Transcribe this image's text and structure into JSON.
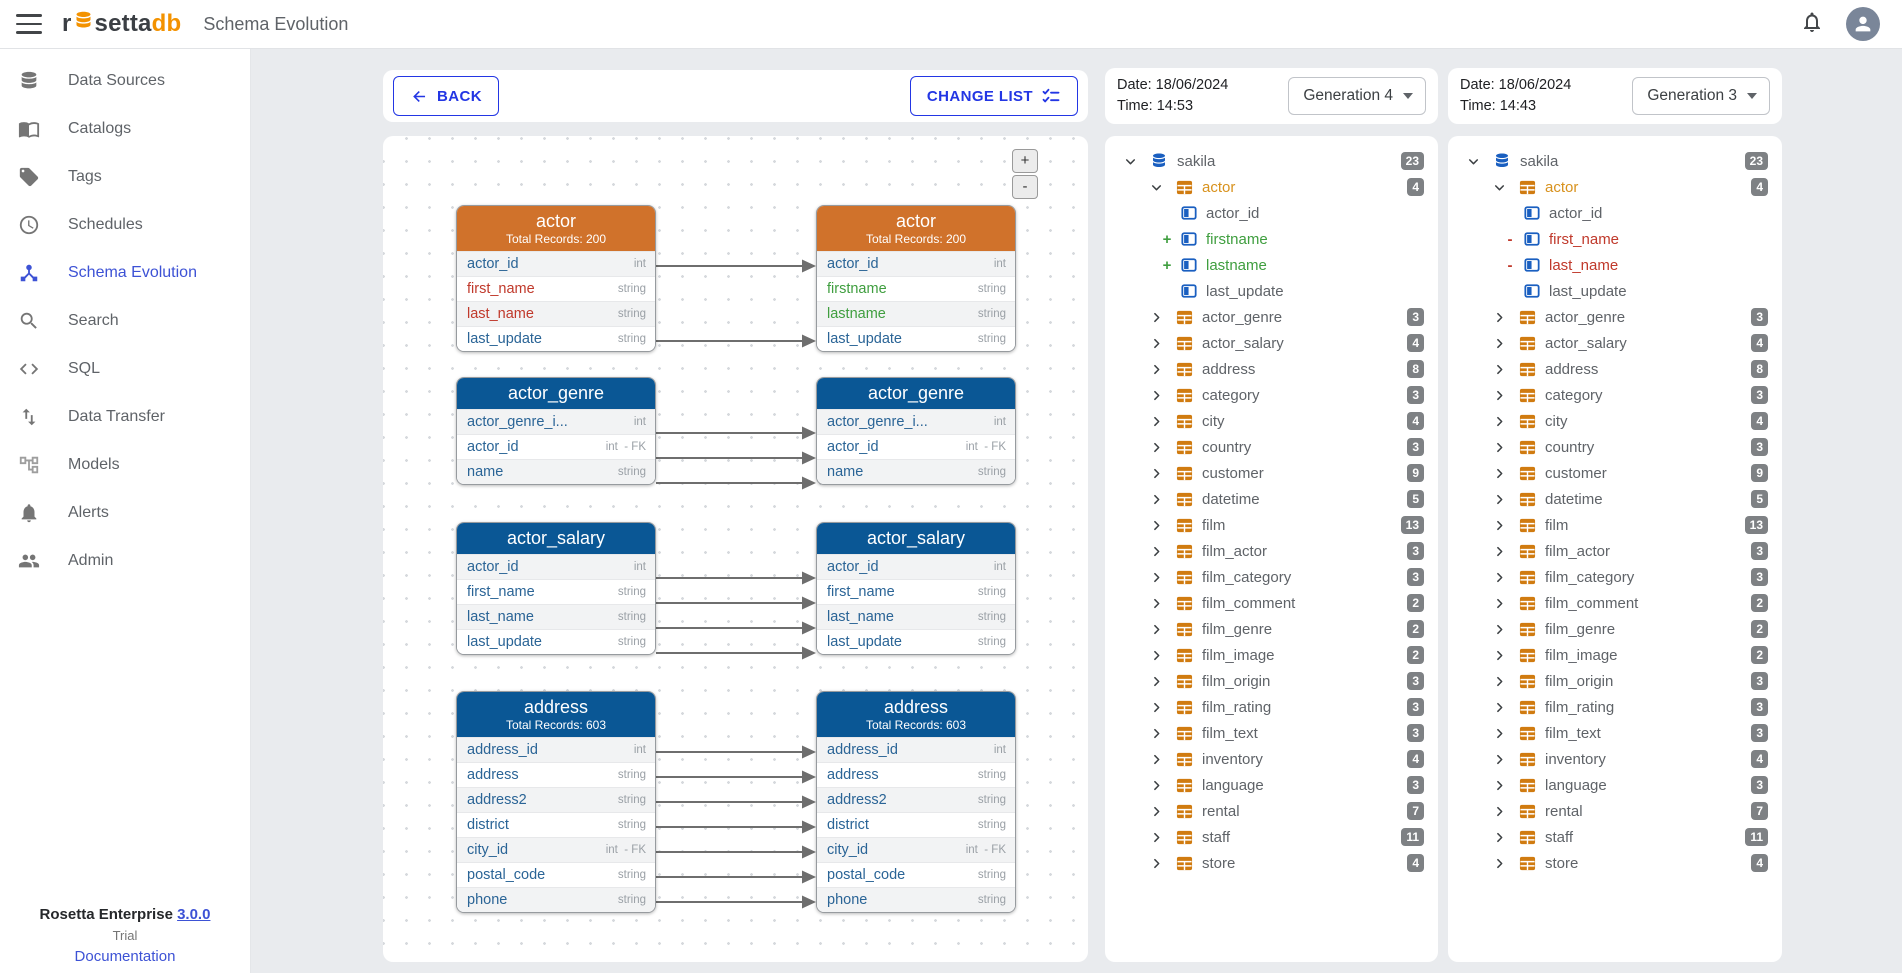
{
  "topbar": {
    "logo": {
      "part1": "r",
      "part2": "setta",
      "part3": "db"
    },
    "title": "Schema Evolution"
  },
  "sidebar": {
    "items": [
      {
        "label": "Data Sources",
        "icon": "database-icon",
        "active": false
      },
      {
        "label": "Catalogs",
        "icon": "book-icon",
        "active": false
      },
      {
        "label": "Tags",
        "icon": "tag-icon",
        "active": false
      },
      {
        "label": "Schedules",
        "icon": "clock-icon",
        "active": false
      },
      {
        "label": "Schema Evolution",
        "icon": "schema-evolution-icon",
        "active": true
      },
      {
        "label": "Search",
        "icon": "search-icon",
        "active": false
      },
      {
        "label": "SQL",
        "icon": "code-icon",
        "active": false
      },
      {
        "label": "Data Transfer",
        "icon": "transfer-icon",
        "active": false
      },
      {
        "label": "Models",
        "icon": "models-icon",
        "active": false
      },
      {
        "label": "Alerts",
        "icon": "bell-icon",
        "active": false
      },
      {
        "label": "Admin",
        "icon": "people-icon",
        "active": false
      }
    ],
    "footer": {
      "product": "Rosetta Enterprise",
      "version": "3.0.0",
      "edition": "Trial",
      "link": "Documentation"
    }
  },
  "toolbar": {
    "back": "BACK",
    "change_list": "CHANGE LIST"
  },
  "canvas": {
    "zoom_in": "+",
    "zoom_out": "-",
    "columns": [
      {
        "side": "left",
        "tables": [
          {
            "name": "actor",
            "variant": "orange",
            "subtitle": "Total Records: 200",
            "links_at": "center",
            "links": [
              0,
              3
            ],
            "rows": [
              {
                "name": "actor_id",
                "type": "int"
              },
              {
                "name": "first_name",
                "type": "string",
                "state": "removed"
              },
              {
                "name": "last_name",
                "type": "string",
                "state": "removed"
              },
              {
                "name": "last_update",
                "type": "string"
              }
            ]
          },
          {
            "name": "actor_genre",
            "variant": "blue",
            "links_at": "bottom",
            "links": [
              0,
              1,
              2
            ],
            "rows": [
              {
                "name": "actor_genre_i...",
                "type": "int"
              },
              {
                "name": "actor_id",
                "type": "int",
                "fk": true
              },
              {
                "name": "name",
                "type": "string"
              }
            ]
          },
          {
            "name": "actor_salary",
            "variant": "blue",
            "links_at": "bottom",
            "links": [
              0,
              1,
              2,
              3
            ],
            "rows": [
              {
                "name": "actor_id",
                "type": "int"
              },
              {
                "name": "first_name",
                "type": "string"
              },
              {
                "name": "last_name",
                "type": "string"
              },
              {
                "name": "last_update",
                "type": "string"
              }
            ]
          },
          {
            "name": "address",
            "variant": "blue",
            "subtitle": "Total Records: 603",
            "links_at": "center",
            "links": [
              0,
              1,
              2,
              3,
              4,
              5,
              6
            ],
            "rows": [
              {
                "name": "address_id",
                "type": "int"
              },
              {
                "name": "address",
                "type": "string"
              },
              {
                "name": "address2",
                "type": "string"
              },
              {
                "name": "district",
                "type": "string"
              },
              {
                "name": "city_id",
                "type": "int",
                "fk": true
              },
              {
                "name": "postal_code",
                "type": "string"
              },
              {
                "name": "phone",
                "type": "string"
              }
            ]
          }
        ]
      },
      {
        "side": "right",
        "tables": [
          {
            "name": "actor",
            "variant": "orange",
            "subtitle": "Total Records: 200",
            "rows": [
              {
                "name": "actor_id",
                "type": "int"
              },
              {
                "name": "firstname",
                "type": "string",
                "state": "added"
              },
              {
                "name": "lastname",
                "type": "string",
                "state": "added"
              },
              {
                "name": "last_update",
                "type": "string"
              }
            ]
          },
          {
            "name": "actor_genre",
            "variant": "blue",
            "rows": [
              {
                "name": "actor_genre_i...",
                "type": "int"
              },
              {
                "name": "actor_id",
                "type": "int",
                "fk": true
              },
              {
                "name": "name",
                "type": "string"
              }
            ]
          },
          {
            "name": "actor_salary",
            "variant": "blue",
            "rows": [
              {
                "name": "actor_id",
                "type": "int"
              },
              {
                "name": "first_name",
                "type": "string"
              },
              {
                "name": "last_name",
                "type": "string"
              },
              {
                "name": "last_update",
                "type": "string"
              }
            ]
          },
          {
            "name": "address",
            "variant": "blue",
            "subtitle": "Total Records: 603",
            "rows": [
              {
                "name": "address_id",
                "type": "int"
              },
              {
                "name": "address",
                "type": "string"
              },
              {
                "name": "address2",
                "type": "string"
              },
              {
                "name": "district",
                "type": "string"
              },
              {
                "name": "city_id",
                "type": "int",
                "fk": true
              },
              {
                "name": "postal_code",
                "type": "string"
              },
              {
                "name": "phone",
                "type": "string"
              }
            ]
          }
        ]
      }
    ]
  },
  "panels": [
    {
      "date_label": "Date: 18/06/2024",
      "time_label": "Time: 14:53",
      "generation": "Generation 4",
      "tree": [
        {
          "label": "sakila",
          "icon": "db",
          "level": 0,
          "chevron": "down",
          "badge": "23"
        },
        {
          "label": "actor",
          "icon": "table",
          "level": 1,
          "chevron": "down",
          "badge": "4",
          "color": "orange"
        },
        {
          "label": "actor_id",
          "icon": "column",
          "level": 2
        },
        {
          "label": "firstname",
          "icon": "column",
          "level": 2,
          "marker": "+",
          "color": "green"
        },
        {
          "label": "lastname",
          "icon": "column",
          "level": 2,
          "marker": "+",
          "color": "green"
        },
        {
          "label": "last_update",
          "icon": "column",
          "level": 2
        },
        {
          "label": "actor_genre",
          "icon": "table",
          "level": 1,
          "chevron": "right",
          "badge": "3"
        },
        {
          "label": "actor_salary",
          "icon": "table",
          "level": 1,
          "chevron": "right",
          "badge": "4"
        },
        {
          "label": "address",
          "icon": "table",
          "level": 1,
          "chevron": "right",
          "badge": "8"
        },
        {
          "label": "category",
          "icon": "table",
          "level": 1,
          "chevron": "right",
          "badge": "3"
        },
        {
          "label": "city",
          "icon": "table",
          "level": 1,
          "chevron": "right",
          "badge": "4"
        },
        {
          "label": "country",
          "icon": "table",
          "level": 1,
          "chevron": "right",
          "badge": "3"
        },
        {
          "label": "customer",
          "icon": "table",
          "level": 1,
          "chevron": "right",
          "badge": "9"
        },
        {
          "label": "datetime",
          "icon": "table",
          "level": 1,
          "chevron": "right",
          "badge": "5"
        },
        {
          "label": "film",
          "icon": "table",
          "level": 1,
          "chevron": "right",
          "badge": "13"
        },
        {
          "label": "film_actor",
          "icon": "table",
          "level": 1,
          "chevron": "right",
          "badge": "3"
        },
        {
          "label": "film_category",
          "icon": "table",
          "level": 1,
          "chevron": "right",
          "badge": "3"
        },
        {
          "label": "film_comment",
          "icon": "table",
          "level": 1,
          "chevron": "right",
          "badge": "2"
        },
        {
          "label": "film_genre",
          "icon": "table",
          "level": 1,
          "chevron": "right",
          "badge": "2"
        },
        {
          "label": "film_image",
          "icon": "table",
          "level": 1,
          "chevron": "right",
          "badge": "2"
        },
        {
          "label": "film_origin",
          "icon": "table",
          "level": 1,
          "chevron": "right",
          "badge": "3"
        },
        {
          "label": "film_rating",
          "icon": "table",
          "level": 1,
          "chevron": "right",
          "badge": "3"
        },
        {
          "label": "film_text",
          "icon": "table",
          "level": 1,
          "chevron": "right",
          "badge": "3"
        },
        {
          "label": "inventory",
          "icon": "table",
          "level": 1,
          "chevron": "right",
          "badge": "4"
        },
        {
          "label": "language",
          "icon": "table",
          "level": 1,
          "chevron": "right",
          "badge": "3"
        },
        {
          "label": "rental",
          "icon": "table",
          "level": 1,
          "chevron": "right",
          "badge": "7"
        },
        {
          "label": "staff",
          "icon": "table",
          "level": 1,
          "chevron": "right",
          "badge": "11"
        },
        {
          "label": "store",
          "icon": "table",
          "level": 1,
          "chevron": "right",
          "badge": "4"
        }
      ]
    },
    {
      "date_label": "Date: 18/06/2024",
      "time_label": "Time: 14:43",
      "generation": "Generation 3",
      "tree": [
        {
          "label": "sakila",
          "icon": "db",
          "level": 0,
          "chevron": "down",
          "badge": "23"
        },
        {
          "label": "actor",
          "icon": "table",
          "level": 1,
          "chevron": "down",
          "badge": "4",
          "color": "orange"
        },
        {
          "label": "actor_id",
          "icon": "column",
          "level": 2
        },
        {
          "label": "first_name",
          "icon": "column",
          "level": 2,
          "marker": "-",
          "color": "red"
        },
        {
          "label": "last_name",
          "icon": "column",
          "level": 2,
          "marker": "-",
          "color": "red"
        },
        {
          "label": "last_update",
          "icon": "column",
          "level": 2
        },
        {
          "label": "actor_genre",
          "icon": "table",
          "level": 1,
          "chevron": "right",
          "badge": "3"
        },
        {
          "label": "actor_salary",
          "icon": "table",
          "level": 1,
          "chevron": "right",
          "badge": "4"
        },
        {
          "label": "address",
          "icon": "table",
          "level": 1,
          "chevron": "right",
          "badge": "8"
        },
        {
          "label": "category",
          "icon": "table",
          "level": 1,
          "chevron": "right",
          "badge": "3"
        },
        {
          "label": "city",
          "icon": "table",
          "level": 1,
          "chevron": "right",
          "badge": "4"
        },
        {
          "label": "country",
          "icon": "table",
          "level": 1,
          "chevron": "right",
          "badge": "3"
        },
        {
          "label": "customer",
          "icon": "table",
          "level": 1,
          "chevron": "right",
          "badge": "9"
        },
        {
          "label": "datetime",
          "icon": "table",
          "level": 1,
          "chevron": "right",
          "badge": "5"
        },
        {
          "label": "film",
          "icon": "table",
          "level": 1,
          "chevron": "right",
          "badge": "13"
        },
        {
          "label": "film_actor",
          "icon": "table",
          "level": 1,
          "chevron": "right",
          "badge": "3"
        },
        {
          "label": "film_category",
          "icon": "table",
          "level": 1,
          "chevron": "right",
          "badge": "3"
        },
        {
          "label": "film_comment",
          "icon": "table",
          "level": 1,
          "chevron": "right",
          "badge": "2"
        },
        {
          "label": "film_genre",
          "icon": "table",
          "level": 1,
          "chevron": "right",
          "badge": "2"
        },
        {
          "label": "film_image",
          "icon": "table",
          "level": 1,
          "chevron": "right",
          "badge": "2"
        },
        {
          "label": "film_origin",
          "icon": "table",
          "level": 1,
          "chevron": "right",
          "badge": "3"
        },
        {
          "label": "film_rating",
          "icon": "table",
          "level": 1,
          "chevron": "right",
          "badge": "3"
        },
        {
          "label": "film_text",
          "icon": "table",
          "level": 1,
          "chevron": "right",
          "badge": "3"
        },
        {
          "label": "inventory",
          "icon": "table",
          "level": 1,
          "chevron": "right",
          "badge": "4"
        },
        {
          "label": "language",
          "icon": "table",
          "level": 1,
          "chevron": "right",
          "badge": "3"
        },
        {
          "label": "rental",
          "icon": "table",
          "level": 1,
          "chevron": "right",
          "badge": "7"
        },
        {
          "label": "staff",
          "icon": "table",
          "level": 1,
          "chevron": "right",
          "badge": "11"
        },
        {
          "label": "store",
          "icon": "table",
          "level": 1,
          "chevron": "right",
          "badge": "4"
        }
      ]
    }
  ]
}
